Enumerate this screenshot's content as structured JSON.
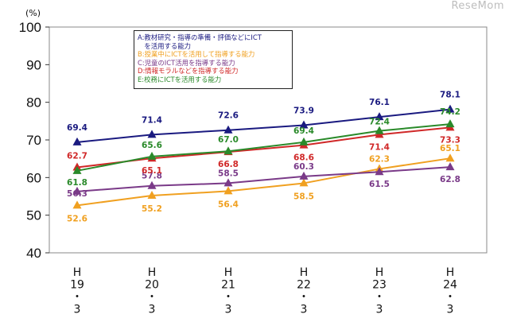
{
  "watermark": "ReseMom",
  "chart_data": {
    "type": "line",
    "ylabel": "(%)",
    "ylim": [
      40,
      100
    ],
    "yticks": [
      "40",
      "50",
      "60",
      "70",
      "80",
      "90",
      "100"
    ],
    "categories": [
      [
        "H",
        "19",
        "・",
        "3"
      ],
      [
        "H",
        "20",
        "・",
        "3"
      ],
      [
        "H",
        "21",
        "・",
        "3"
      ],
      [
        "H",
        "22",
        "・",
        "3"
      ],
      [
        "H",
        "23",
        "・",
        "3"
      ],
      [
        "H",
        "24",
        "・",
        "3"
      ]
    ],
    "legend_position": "top-left",
    "series": [
      {
        "name": "A:教材研究・指導の準備・評価などにICTを活用する能力",
        "legend_lines": [
          "A:教材研究・指導の準備・評価などにICT",
          "　を活用する能力"
        ],
        "color": "#1a1a80",
        "marker": "triangle",
        "values": [
          69.4,
          71.4,
          72.6,
          73.9,
          76.1,
          78.1
        ],
        "labels": [
          "69.4",
          "71.4",
          "72.6",
          "73.9",
          "76.1",
          "78.1"
        ]
      },
      {
        "name": "B:授業中にICTを活用して指導する能力",
        "legend_lines": [
          "B:授業中にICTを活用して指導する能力"
        ],
        "color": "#f0a020",
        "marker": "triangle",
        "values": [
          52.6,
          55.2,
          56.4,
          58.5,
          62.3,
          65.1
        ],
        "labels": [
          "52.6",
          "55.2",
          "56.4",
          "58.5",
          "62.3",
          "65.1"
        ]
      },
      {
        "name": "C:児童のICT活用を指導する能力",
        "legend_lines": [
          "C:児童のICT活用を指導する能力"
        ],
        "color": "#7a3a88",
        "marker": "triangle",
        "values": [
          56.3,
          57.8,
          58.5,
          60.3,
          61.5,
          62.8
        ],
        "labels": [
          "56.3",
          "57.8",
          "58.5",
          "60.3",
          "61.5",
          "62.8"
        ]
      },
      {
        "name": "D:情報モラルなどを指導する能力",
        "legend_lines": [
          "D:情報モラルなどを指導する能力"
        ],
        "color": "#d02828",
        "marker": "triangle",
        "values": [
          62.7,
          65.1,
          66.8,
          68.6,
          71.4,
          73.3
        ],
        "labels": [
          "62.7",
          "65.1",
          "66.8",
          "68.6",
          "71.4",
          "73.3"
        ]
      },
      {
        "name": "E:校務にICTを活用する能力",
        "legend_lines": [
          "E:校務にICTを活用する能力"
        ],
        "color": "#2a8a2a",
        "marker": "triangle",
        "values": [
          61.8,
          65.6,
          67.0,
          69.4,
          72.4,
          74.2
        ],
        "labels": [
          "61.8",
          "65.6",
          "67.0",
          "69.4",
          "72.4",
          "74.2"
        ]
      }
    ]
  }
}
